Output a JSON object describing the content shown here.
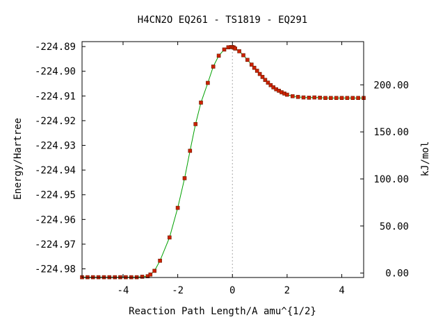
{
  "chart_data": {
    "type": "line",
    "title": "H4CN2O   EQ261 - TS1819 - EQ291",
    "xlabel": "Reaction Path Length/A amu^{1/2}",
    "ylabel": "Energy/Hartree",
    "y2label": "kJ/mol",
    "xlim": [
      -5.5,
      4.8
    ],
    "ylim": [
      -224.9835,
      -224.888
    ],
    "y2lim": [
      -4.7,
      245.9
    ],
    "x_ticks": [
      -4,
      -2,
      0,
      2,
      4
    ],
    "x_tick_labels": [
      "-4",
      "-2",
      "0",
      "2",
      "4"
    ],
    "y_ticks": [
      -224.89,
      -224.9,
      -224.91,
      -224.92,
      -224.93,
      -224.94,
      -224.95,
      -224.96,
      -224.97,
      -224.98
    ],
    "y_tick_labels": [
      "-224.89",
      "-224.90",
      "-224.91",
      "-224.92",
      "-224.93",
      "-224.94",
      "-224.95",
      "-224.96",
      "-224.97",
      "-224.98"
    ],
    "y2_ticks": [
      0,
      50,
      100,
      150,
      200
    ],
    "y2_tick_labels": [
      "0.00",
      "50.00",
      "100.00",
      "150.00",
      "200.00"
    ],
    "ts_line_x": 0,
    "grid": false,
    "colors": {
      "line": "#00a000",
      "points": "#cc2200",
      "points_edge": "#6a1a00",
      "ts_line": "#aaaaaa",
      "frame": "#000000"
    },
    "series": [
      {
        "x": [
          -5.5,
          -5.3,
          -5.1,
          -4.9,
          -4.7,
          -4.5,
          -4.3,
          -4.1,
          -3.9,
          -3.7,
          -3.5,
          -3.3,
          -3.1,
          -3.0,
          -2.85,
          -2.65,
          -2.3,
          -2.0,
          -1.75,
          -1.55,
          -1.35,
          -1.15,
          -0.9,
          -0.7,
          -0.5,
          -0.3,
          -0.15,
          -0.05,
          0.0,
          0.05,
          0.1,
          0.25,
          0.4,
          0.55,
          0.7,
          0.8,
          0.9,
          1.0,
          1.1,
          1.2,
          1.3,
          1.4,
          1.5,
          1.6,
          1.7,
          1.8,
          1.9,
          2.0,
          2.2,
          2.4,
          2.6,
          2.8,
          3.0,
          3.2,
          3.4,
          3.6,
          3.8,
          4.0,
          4.2,
          4.4,
          4.6,
          4.8
        ],
        "y": [
          -224.9834,
          -224.9834,
          -224.9834,
          -224.9834,
          -224.9834,
          -224.9834,
          -224.9834,
          -224.9834,
          -224.9834,
          -224.9834,
          -224.9834,
          -224.9832,
          -224.983,
          -224.9823,
          -224.9808,
          -224.9767,
          -224.9673,
          -224.9553,
          -224.9433,
          -224.9322,
          -224.9214,
          -224.9127,
          -224.9047,
          -224.8981,
          -224.8937,
          -224.8912,
          -224.8903,
          -224.8902,
          -224.8902,
          -224.8904,
          -224.8908,
          -224.8919,
          -224.8935,
          -224.8954,
          -224.8973,
          -224.8986,
          -224.8998,
          -224.9011,
          -224.9023,
          -224.9035,
          -224.9046,
          -224.9056,
          -224.9065,
          -224.9073,
          -224.9079,
          -224.9085,
          -224.909,
          -224.9095,
          -224.9101,
          -224.9104,
          -224.9106,
          -224.9107,
          -224.9106,
          -224.9107,
          -224.9108,
          -224.9108,
          -224.9108,
          -224.9108,
          -224.9108,
          -224.9108,
          -224.9108,
          -224.9108
        ]
      }
    ]
  }
}
